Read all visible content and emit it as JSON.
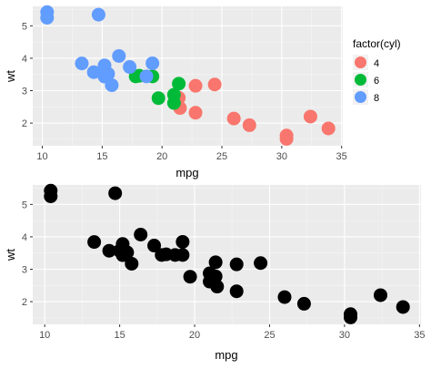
{
  "colors": {
    "panel_bg": "#ebebeb",
    "grid_major": "#ffffff",
    "grid_minor": "#f5f5f5",
    "point_default": "#000000",
    "legend_key_bg": "#f2f2f2"
  },
  "chart_data": [
    {
      "type": "scatter",
      "title": "",
      "xlabel": "mpg",
      "ylabel": "wt",
      "xlim": [
        9.2,
        35.1
      ],
      "ylim": [
        1.3,
        5.6
      ],
      "x_ticks": [
        10,
        15,
        20,
        25,
        30,
        35
      ],
      "y_ticks": [
        2,
        3,
        4,
        5
      ],
      "grid": true,
      "legend": {
        "title": "factor(cyl)",
        "placement": "right",
        "entries": [
          {
            "label": "4",
            "color": "#F8766D"
          },
          {
            "label": "6",
            "color": "#00BA38"
          },
          {
            "label": "8",
            "color": "#619CFF"
          }
        ]
      },
      "series": [
        {
          "name": "4",
          "color": "#F8766D",
          "points": [
            {
              "x": 22.8,
              "y": 2.32
            },
            {
              "x": 24.4,
              "y": 3.19
            },
            {
              "x": 22.8,
              "y": 3.15
            },
            {
              "x": 32.4,
              "y": 2.2
            },
            {
              "x": 30.4,
              "y": 1.615
            },
            {
              "x": 33.9,
              "y": 1.835
            },
            {
              "x": 21.5,
              "y": 2.465
            },
            {
              "x": 27.3,
              "y": 1.935
            },
            {
              "x": 26.0,
              "y": 2.14
            },
            {
              "x": 30.4,
              "y": 1.513
            },
            {
              "x": 21.4,
              "y": 2.78
            }
          ]
        },
        {
          "name": "6",
          "color": "#00BA38",
          "points": [
            {
              "x": 21.0,
              "y": 2.62
            },
            {
              "x": 21.0,
              "y": 2.875
            },
            {
              "x": 21.4,
              "y": 3.215
            },
            {
              "x": 18.1,
              "y": 3.46
            },
            {
              "x": 19.2,
              "y": 3.44
            },
            {
              "x": 17.8,
              "y": 3.44
            },
            {
              "x": 19.7,
              "y": 2.77
            }
          ]
        },
        {
          "name": "8",
          "color": "#619CFF",
          "points": [
            {
              "x": 18.7,
              "y": 3.44
            },
            {
              "x": 14.3,
              "y": 3.57
            },
            {
              "x": 16.4,
              "y": 4.07
            },
            {
              "x": 17.3,
              "y": 3.73
            },
            {
              "x": 15.2,
              "y": 3.78
            },
            {
              "x": 10.4,
              "y": 5.25
            },
            {
              "x": 10.4,
              "y": 5.424
            },
            {
              "x": 14.7,
              "y": 5.345
            },
            {
              "x": 15.5,
              "y": 3.52
            },
            {
              "x": 15.2,
              "y": 3.435
            },
            {
              "x": 13.3,
              "y": 3.84
            },
            {
              "x": 19.2,
              "y": 3.845
            },
            {
              "x": 15.8,
              "y": 3.17
            },
            {
              "x": 15.0,
              "y": 3.57
            }
          ]
        }
      ]
    },
    {
      "type": "scatter",
      "title": "",
      "xlabel": "mpg",
      "ylabel": "wt",
      "xlim": [
        9.2,
        35.1
      ],
      "ylim": [
        1.3,
        5.6
      ],
      "x_ticks": [
        10,
        15,
        20,
        25,
        30,
        35
      ],
      "y_ticks": [
        2,
        3,
        4,
        5
      ],
      "grid": true,
      "series": [
        {
          "color": "#000000",
          "points": [
            {
              "x": 21.0,
              "y": 2.62
            },
            {
              "x": 21.0,
              "y": 2.875
            },
            {
              "x": 22.8,
              "y": 2.32
            },
            {
              "x": 21.4,
              "y": 3.215
            },
            {
              "x": 18.7,
              "y": 3.44
            },
            {
              "x": 18.1,
              "y": 3.46
            },
            {
              "x": 14.3,
              "y": 3.57
            },
            {
              "x": 24.4,
              "y": 3.19
            },
            {
              "x": 22.8,
              "y": 3.15
            },
            {
              "x": 19.2,
              "y": 3.44
            },
            {
              "x": 17.8,
              "y": 3.44
            },
            {
              "x": 16.4,
              "y": 4.07
            },
            {
              "x": 17.3,
              "y": 3.73
            },
            {
              "x": 15.2,
              "y": 3.78
            },
            {
              "x": 10.4,
              "y": 5.25
            },
            {
              "x": 10.4,
              "y": 5.424
            },
            {
              "x": 14.7,
              "y": 5.345
            },
            {
              "x": 32.4,
              "y": 2.2
            },
            {
              "x": 30.4,
              "y": 1.615
            },
            {
              "x": 33.9,
              "y": 1.835
            },
            {
              "x": 21.5,
              "y": 2.465
            },
            {
              "x": 15.5,
              "y": 3.52
            },
            {
              "x": 15.2,
              "y": 3.435
            },
            {
              "x": 13.3,
              "y": 3.84
            },
            {
              "x": 19.2,
              "y": 3.845
            },
            {
              "x": 27.3,
              "y": 1.935
            },
            {
              "x": 26.0,
              "y": 2.14
            },
            {
              "x": 30.4,
              "y": 1.513
            },
            {
              "x": 15.8,
              "y": 3.17
            },
            {
              "x": 19.7,
              "y": 2.77
            },
            {
              "x": 15.0,
              "y": 3.57
            },
            {
              "x": 21.4,
              "y": 2.78
            }
          ]
        }
      ]
    }
  ]
}
